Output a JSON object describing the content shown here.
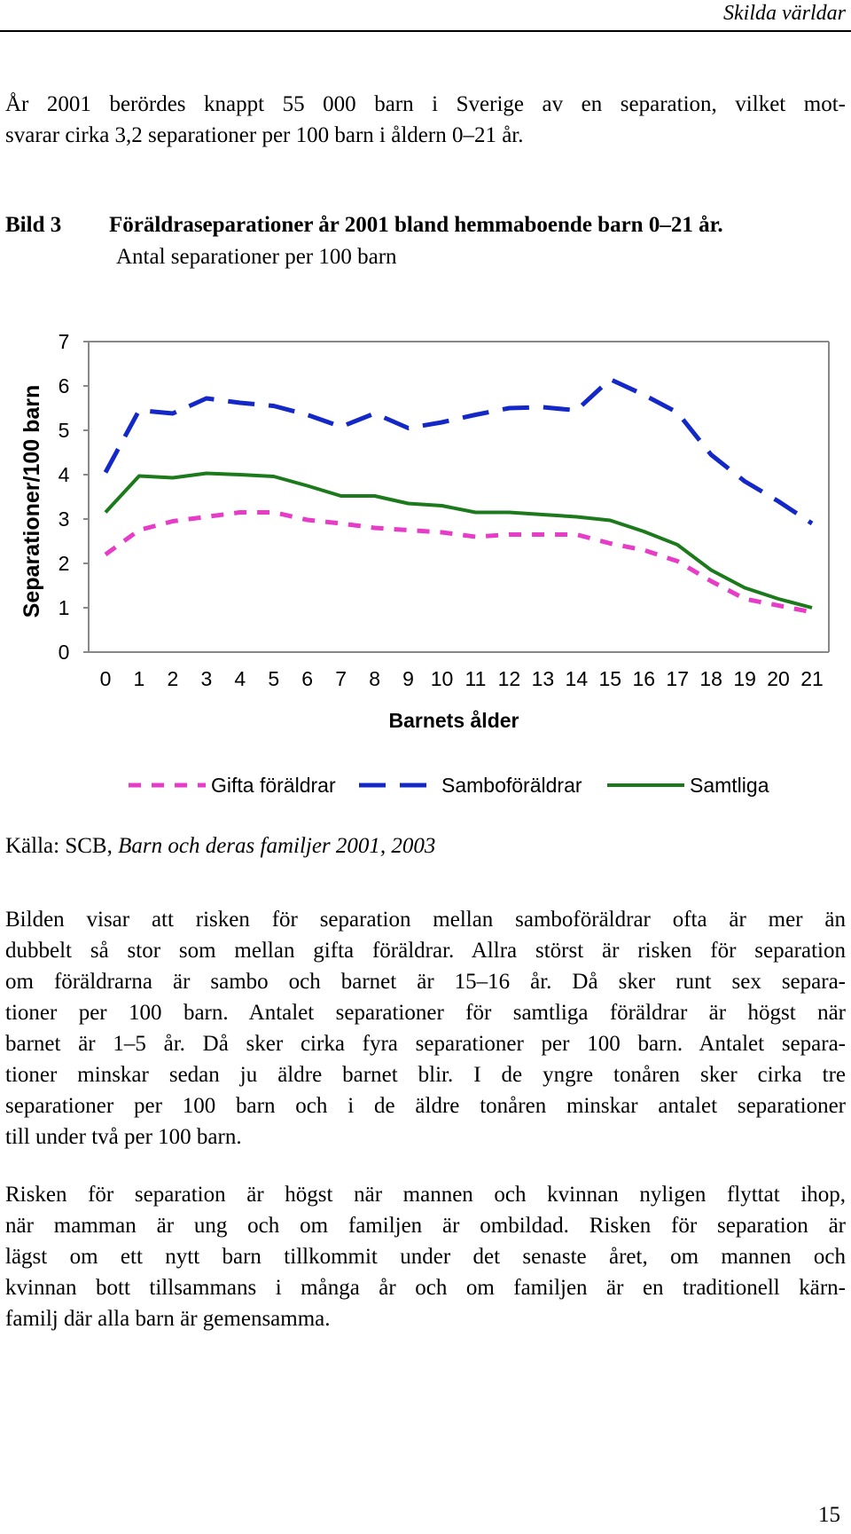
{
  "header": {
    "running_title": "Skilda världar"
  },
  "intro": {
    "lines": [
      "År 2001 berördes knappt 55 000 barn i Sverige av en separation, vilket mot-",
      "svarar cirka 3,2 separationer per 100 barn i åldern 0–21 år."
    ]
  },
  "figure": {
    "number": "Bild 3",
    "title": "Föräldraseparationer år 2001 bland hemmaboende barn 0–21 år.",
    "subtitle": "Antal separationer per 100 barn"
  },
  "chart_data": {
    "type": "line",
    "title": "",
    "xlabel": "Barnets ålder",
    "ylabel": "Separationer/100 barn",
    "x": [
      0,
      1,
      2,
      3,
      4,
      5,
      6,
      7,
      8,
      9,
      10,
      11,
      12,
      13,
      14,
      15,
      16,
      17,
      18,
      19,
      20,
      21
    ],
    "x_tick_labels": [
      "0",
      "1",
      "2",
      "3",
      "4",
      "5",
      "6",
      "7",
      "8",
      "9",
      "10",
      "11",
      "12",
      "13",
      "14",
      "15",
      "16",
      "17",
      "18",
      "19",
      "20",
      "21"
    ],
    "y_tick_labels": [
      "0",
      "1",
      "2",
      "3",
      "4",
      "5",
      "6",
      "7"
    ],
    "ylim": [
      0,
      7
    ],
    "grid": false,
    "legend_position": "bottom",
    "series": [
      {
        "name": "Gifta föräldrar",
        "style": "dotted",
        "color": "#E63CC8",
        "values": [
          2.2,
          2.75,
          2.95,
          3.05,
          3.15,
          3.15,
          2.98,
          2.9,
          2.8,
          2.75,
          2.7,
          2.6,
          2.65,
          2.65,
          2.65,
          2.45,
          2.3,
          2.05,
          1.6,
          1.2,
          1.05,
          0.9
        ]
      },
      {
        "name": "Samboföräldrar",
        "style": "dashed",
        "color": "#1428C8",
        "values": [
          4.05,
          5.45,
          5.38,
          5.72,
          5.62,
          5.55,
          5.35,
          5.08,
          5.38,
          5.05,
          5.18,
          5.35,
          5.5,
          5.52,
          5.45,
          6.15,
          5.8,
          5.4,
          4.45,
          3.85,
          3.4,
          2.9
        ]
      },
      {
        "name": "Samtliga",
        "style": "solid",
        "color": "#1C7A1C",
        "values": [
          3.15,
          3.97,
          3.93,
          4.03,
          4.0,
          3.96,
          3.75,
          3.52,
          3.52,
          3.35,
          3.3,
          3.15,
          3.15,
          3.1,
          3.05,
          2.97,
          2.72,
          2.42,
          1.85,
          1.45,
          1.2,
          1.0
        ]
      }
    ]
  },
  "source": {
    "prefix": "Källa: SCB, ",
    "italic": "Barn och deras familjer 2001, 2003"
  },
  "body": {
    "para1_lines": [
      "Bilden visar att risken för separation mellan samboföräldrar ofta är mer än",
      "dubbelt så stor som mellan gifta föräldrar. Allra störst är risken för separation",
      "om föräldrarna är sambo och barnet är 15–16 år. Då sker runt sex separa-",
      "tioner per 100 barn. Antalet separationer för samtliga föräldrar är högst när",
      "barnet är 1–5 år. Då sker cirka fyra separationer per 100 barn. Antalet separa-",
      "tioner minskar sedan ju äldre barnet blir. I de yngre tonåren sker cirka tre",
      "separationer per 100 barn och i de äldre tonåren minskar antalet separationer",
      "till under två per 100 barn."
    ],
    "para2_lines": [
      "Risken för separation är högst när mannen och kvinnan nyligen flyttat ihop,",
      "när mamman är ung och om familjen är ombildad. Risken för separation är",
      "lägst om ett nytt barn tillkommit under det senaste året, om mannen och",
      "kvinnan bott tillsammans i många år och om familjen är en traditionell kärn-",
      "familj där alla barn är gemensamma."
    ]
  },
  "footer": {
    "page_number": "15"
  }
}
